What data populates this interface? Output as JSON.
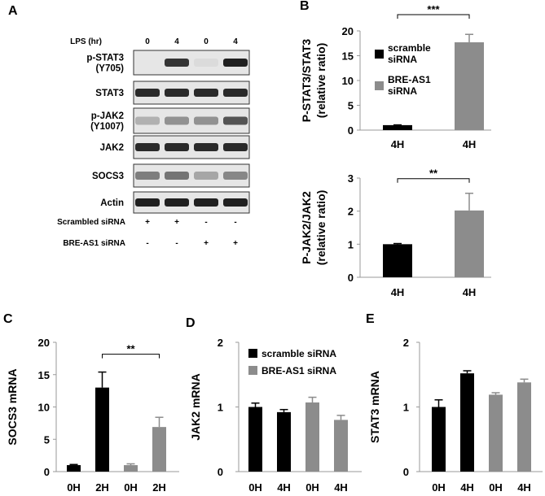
{
  "panels": {
    "A": "A",
    "B": "B",
    "C": "C",
    "D": "D",
    "E": "E"
  },
  "western_blot": {
    "header_label": "LPS (hr)",
    "lanes": [
      "0",
      "4",
      "0",
      "4"
    ],
    "rows": [
      {
        "label": "p-STAT3\n(Y705)",
        "intensity": [
          0.0,
          0.85,
          0.05,
          0.95
        ]
      },
      {
        "label": "STAT3",
        "intensity": [
          0.9,
          0.9,
          0.9,
          0.9
        ]
      },
      {
        "label": "p-JAK2\n(Y1007)",
        "intensity": [
          0.25,
          0.4,
          0.4,
          0.7
        ]
      },
      {
        "label": "JAK2",
        "intensity": [
          0.9,
          0.9,
          0.9,
          0.9
        ]
      },
      {
        "label": "SOCS3",
        "intensity": [
          0.5,
          0.55,
          0.3,
          0.45
        ]
      },
      {
        "label": "Actin",
        "intensity": [
          0.95,
          0.95,
          0.95,
          0.95
        ]
      }
    ],
    "conditions": [
      {
        "label": "Scrambled siRNA",
        "marks": [
          "+",
          "+",
          "-",
          "-"
        ]
      },
      {
        "label": "BRE-AS1 siRNA",
        "marks": [
          "-",
          "-",
          "+",
          "+"
        ]
      }
    ]
  },
  "legend": {
    "scramble_B": "scramble\nsiRNA",
    "breas1_B": "BRE-AS1\nsiRNA",
    "scramble_D": "scramble siRNA",
    "breas1_D": "BRE-AS1 siRNA"
  },
  "colors": {
    "scramble": "#000000",
    "breas1": "#8c8c8c",
    "blot_band": "#151515",
    "blot_bg": "#e6e6e6"
  },
  "chart_data": [
    {
      "panel": "B",
      "type": "bar",
      "categories": [
        "4H",
        "4H"
      ],
      "values": [
        1.0,
        17.7
      ],
      "errors": [
        0.05,
        1.6
      ],
      "ylabel": "P-STAT3/STAT3\n(relative ratio)",
      "ylim": [
        0,
        20
      ],
      "yticks": [
        0,
        5,
        10,
        15,
        20
      ],
      "bar_colors": [
        "scramble",
        "breas1"
      ],
      "significance": [
        {
          "from": 0,
          "to": 1,
          "label": "***"
        }
      ]
    },
    {
      "panel": "B2",
      "type": "bar",
      "categories": [
        "4H",
        "4H"
      ],
      "values": [
        1.0,
        2.02
      ],
      "errors": [
        0.02,
        0.52
      ],
      "ylabel": "P-JAK2/JAK2\n(relative ratio)",
      "ylim": [
        0,
        3
      ],
      "yticks": [
        0,
        1,
        2,
        3
      ],
      "bar_colors": [
        "scramble",
        "breas1"
      ],
      "significance": [
        {
          "from": 0,
          "to": 1,
          "label": "**"
        }
      ]
    },
    {
      "panel": "C",
      "type": "bar",
      "categories": [
        "0H",
        "2H",
        "0H",
        "2H"
      ],
      "values": [
        1.0,
        13.0,
        1.0,
        6.9
      ],
      "errors": [
        0.1,
        2.4,
        0.2,
        1.5
      ],
      "ylabel": "SOCS3 mRNA",
      "ylim": [
        0,
        20
      ],
      "yticks": [
        0,
        5,
        10,
        15,
        20
      ],
      "bar_colors": [
        "scramble",
        "scramble",
        "breas1",
        "breas1"
      ],
      "significance": [
        {
          "from": 1,
          "to": 3,
          "label": "**"
        }
      ]
    },
    {
      "panel": "D",
      "type": "bar",
      "categories": [
        "0H",
        "4H",
        "0H",
        "4H"
      ],
      "values": [
        1.0,
        0.92,
        1.07,
        0.8
      ],
      "errors": [
        0.06,
        0.04,
        0.08,
        0.07
      ],
      "ylabel": "JAK2 mRNA",
      "ylim": [
        0,
        2
      ],
      "yticks": [
        0,
        1,
        2
      ],
      "bar_colors": [
        "scramble",
        "scramble",
        "breas1",
        "breas1"
      ],
      "significance": []
    },
    {
      "panel": "E",
      "type": "bar",
      "categories": [
        "0H",
        "4H",
        "0H",
        "4H"
      ],
      "values": [
        1.0,
        1.52,
        1.19,
        1.38
      ],
      "errors": [
        0.11,
        0.04,
        0.03,
        0.05
      ],
      "ylabel": "STAT3 mRNA",
      "ylim": [
        0,
        2
      ],
      "yticks": [
        0,
        1,
        2
      ],
      "bar_colors": [
        "scramble",
        "scramble",
        "breas1",
        "breas1"
      ],
      "significance": []
    }
  ]
}
